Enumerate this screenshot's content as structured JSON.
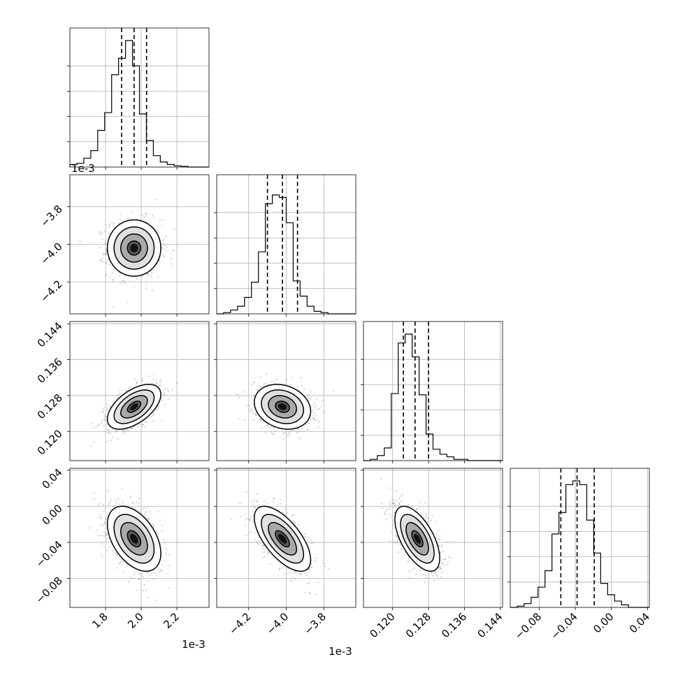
{
  "chart_data": {
    "type": "corner",
    "grid": true,
    "params": [
      {
        "index": 0,
        "scale_label": "1e-3",
        "ticks": [
          "1.8",
          "2.0",
          "2.2"
        ],
        "tick_values": [
          1.8,
          2.0,
          2.2
        ],
        "range": [
          1.6,
          2.38
        ],
        "hist": {
          "edges_start": 1.6,
          "bin_width": 0.039,
          "counts": [
            0.02,
            0.03,
            0.07,
            0.13,
            0.29,
            0.43,
            0.73,
            0.86,
            1.0,
            0.8,
            0.42,
            0.21,
            0.09,
            0.04,
            0.02,
            0.01,
            0.005,
            0.0,
            0.0,
            0.0
          ],
          "quantiles": [
            1.89,
            1.96,
            2.03
          ]
        }
      },
      {
        "index": 1,
        "scale_label": "1e-3",
        "ticks": [
          "−4.2",
          "−4.0",
          "−3.8"
        ],
        "tick_values": [
          -4.2,
          -4.0,
          -3.8
        ],
        "range": [
          -4.37,
          -3.63
        ],
        "hist": {
          "edges_start": -4.37,
          "bin_width": 0.037,
          "counts": [
            0.0,
            0.01,
            0.03,
            0.06,
            0.13,
            0.25,
            0.49,
            0.87,
            0.94,
            0.92,
            0.72,
            0.26,
            0.14,
            0.06,
            0.02,
            0.01,
            0.0,
            0.0,
            0.0,
            0.0
          ],
          "quantiles": [
            -4.1,
            -4.02,
            -3.94
          ]
        }
      },
      {
        "index": 2,
        "scale_label": "",
        "ticks": [
          "0.120",
          "0.128",
          "0.136",
          "0.144"
        ],
        "tick_values": [
          0.12,
          0.128,
          0.136,
          0.144
        ],
        "range": [
          0.1135,
          0.1445
        ],
        "hist": {
          "edges_start": 0.1135,
          "bin_width": 0.00155,
          "counts": [
            0.0,
            0.01,
            0.04,
            0.1,
            0.53,
            0.93,
            1.0,
            0.82,
            0.52,
            0.21,
            0.09,
            0.05,
            0.03,
            0.01,
            0.01,
            0.0,
            0.0,
            0.0,
            0.0,
            0.0
          ],
          "quantiles": [
            0.1224,
            0.125,
            0.128
          ]
        }
      },
      {
        "index": 3,
        "scale_label": "",
        "ticks": [
          "−0.08",
          "−0.04",
          "0.00",
          "0.04"
        ],
        "tick_values": [
          -0.08,
          -0.04,
          0.0,
          0.04
        ],
        "range": [
          -0.112,
          0.042
        ],
        "hist": {
          "edges_start": -0.112,
          "bin_width": 0.0077,
          "counts": [
            0.0,
            0.01,
            0.03,
            0.08,
            0.16,
            0.29,
            0.58,
            0.75,
            0.97,
            1.0,
            0.97,
            0.69,
            0.43,
            0.19,
            0.1,
            0.05,
            0.02,
            0.0,
            0.0,
            0.0
          ],
          "quantiles": [
            -0.056,
            -0.038,
            -0.019
          ]
        }
      }
    ],
    "pairs": [
      {
        "x": 0,
        "y": 1,
        "center": [
          1.96,
          -4.02
        ],
        "spread": [
          0.075,
          0.075
        ],
        "rho": 0.0
      },
      {
        "x": 0,
        "y": 2,
        "center": [
          1.96,
          0.1255
        ],
        "spread": [
          0.075,
          0.0025
        ],
        "rho": 0.55
      },
      {
        "x": 1,
        "y": 2,
        "center": [
          -4.02,
          0.1255
        ],
        "spread": [
          0.075,
          0.0025
        ],
        "rho": -0.2
      },
      {
        "x": 0,
        "y": 3,
        "center": [
          1.96,
          -0.036
        ],
        "spread": [
          0.075,
          0.018
        ],
        "rho": -0.45
      },
      {
        "x": 1,
        "y": 3,
        "center": [
          -4.02,
          -0.036
        ],
        "spread": [
          0.075,
          0.018
        ],
        "rho": -0.65
      },
      {
        "x": 2,
        "y": 3,
        "center": [
          0.1255,
          -0.036
        ],
        "spread": [
          0.0025,
          0.018
        ],
        "rho": -0.6
      }
    ],
    "contour_levels_sigma": [
      0.5,
      1.0,
      1.5,
      2.0
    ]
  }
}
